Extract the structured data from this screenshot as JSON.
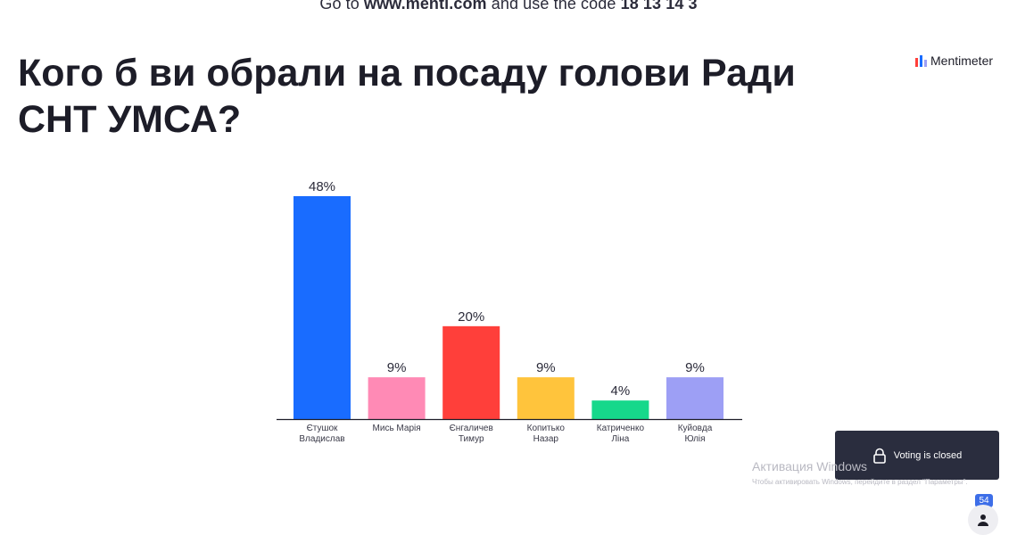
{
  "join": {
    "prefix": "Go to",
    "url": "www.menti.com",
    "middle": "and use the code",
    "code": "18 13 14 3"
  },
  "question": "Кого б ви обрали на посаду голови Ради СНТ УМСА?",
  "brand": {
    "name": "Mentimeter",
    "icon": "mentimeter-logo-icon"
  },
  "chart_data": {
    "type": "bar",
    "title": "",
    "xlabel": "",
    "ylabel": "",
    "ylim": [
      0,
      48
    ],
    "grid": false,
    "legend": "none",
    "categories": [
      [
        "Єтушок",
        "Владислав"
      ],
      [
        "Мись Марія"
      ],
      [
        "Єнгаличев",
        "Тимур"
      ],
      [
        "Копитько",
        "Назар"
      ],
      [
        "Катриченко",
        "Ліна"
      ],
      [
        "Куйовда",
        "Юлія"
      ]
    ],
    "values": [
      48,
      9,
      20,
      9,
      4,
      9
    ],
    "value_labels": [
      "48%",
      "9%",
      "20%",
      "9%",
      "4%",
      "9%"
    ],
    "colors": [
      "#196cff",
      "#ff8ab5",
      "#ff3f3a",
      "#ffc43c",
      "#16d88b",
      "#9d9ff5"
    ]
  },
  "status": {
    "voting_label": "Voting is closed",
    "lock_icon": "lock-icon"
  },
  "watermark": {
    "title": "Активация Windows",
    "text": "Чтобы активировать Windows, перейдите в раздел \"Параметры\"."
  },
  "audience": {
    "count": "54",
    "icon": "person-icon"
  }
}
